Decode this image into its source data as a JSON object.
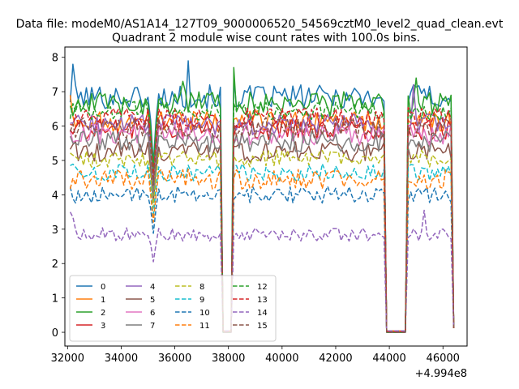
{
  "chart_data": {
    "type": "line",
    "suptitle": "Data file: modeM0/AS1A14_127T09_9000006520_54569cztM0_level2_quad_clean.evt",
    "title": "Quadrant 2 module wise count rates with 100.0s bins.",
    "xlabel": "",
    "ylabel": "",
    "x_offset_label": "+4.994e8",
    "xlim": [
      31900,
      46900
    ],
    "ylim": [
      -0.4,
      8.3
    ],
    "xticks": [
      32000,
      34000,
      36000,
      38000,
      40000,
      42000,
      44000,
      46000
    ],
    "xtick_labels": [
      "32000",
      "34000",
      "36000",
      "38000",
      "40000",
      "42000",
      "44000",
      "46000"
    ],
    "yticks": [
      0,
      1,
      2,
      3,
      4,
      5,
      6,
      7,
      8
    ],
    "ytick_labels": [
      "0",
      "1",
      "2",
      "3",
      "4",
      "5",
      "6",
      "7",
      "8"
    ],
    "legend_position": "lower-left",
    "legend_columns": 4,
    "time_bins": {
      "x_start": 32100,
      "x_end": 46400,
      "step": 100
    },
    "gaps": [
      {
        "fall": [
          37700,
          37800
        ],
        "zero": [
          37800,
          38100
        ],
        "rise": [
          38100,
          38300
        ]
      },
      {
        "fall": [
          43800,
          43900
        ],
        "zero": [
          43900,
          44600
        ],
        "rise": [
          44600,
          44700
        ]
      }
    ],
    "final_drop": [
      46300,
      46400
    ],
    "series": [
      {
        "name": "0",
        "color": "#1f77b4",
        "dash": "solid",
        "level": 6.85,
        "amp": 0.35,
        "spikes": [
          [
            32200,
            7.8
          ],
          [
            36500,
            7.9
          ],
          [
            38200,
            7.4
          ],
          [
            42700,
            7.1
          ],
          [
            44900,
            7.2
          ]
        ]
      },
      {
        "name": "1",
        "color": "#ff7f0e",
        "dash": "solid",
        "level": 6.15,
        "amp": 0.3,
        "spikes": [
          [
            32100,
            6.9
          ]
        ]
      },
      {
        "name": "2",
        "color": "#2ca02c",
        "dash": "solid",
        "level": 6.65,
        "amp": 0.35,
        "spikes": [
          [
            38200,
            7.7
          ],
          [
            36300,
            7.3
          ],
          [
            45000,
            7.4
          ]
        ]
      },
      {
        "name": "3",
        "color": "#d62728",
        "dash": "solid",
        "level": 5.9,
        "amp": 0.3,
        "spikes": []
      },
      {
        "name": "4",
        "color": "#9467bd",
        "dash": "solid",
        "level": 6.05,
        "amp": 0.3,
        "spikes": [
          [
            44900,
            7.2
          ]
        ]
      },
      {
        "name": "5",
        "color": "#8c564b",
        "dash": "solid",
        "level": 5.25,
        "amp": 0.3,
        "spikes": []
      },
      {
        "name": "6",
        "color": "#e377c2",
        "dash": "solid",
        "level": 5.75,
        "amp": 0.3,
        "spikes": []
      },
      {
        "name": "7",
        "color": "#7f7f7f",
        "dash": "solid",
        "level": 5.55,
        "amp": 0.3,
        "spikes": []
      },
      {
        "name": "8",
        "color": "#bcbd22",
        "dash": "dashed",
        "level": 5.05,
        "amp": 0.25,
        "spikes": []
      },
      {
        "name": "9",
        "color": "#17becf",
        "dash": "dashed",
        "level": 4.65,
        "amp": 0.25,
        "spikes": []
      },
      {
        "name": "10",
        "color": "#1f77b4",
        "dash": "dashed",
        "level": 4.0,
        "amp": 0.25,
        "spikes": []
      },
      {
        "name": "11",
        "color": "#ff7f0e",
        "dash": "dashed",
        "level": 4.45,
        "amp": 0.3,
        "spikes": []
      },
      {
        "name": "12",
        "color": "#2ca02c",
        "dash": "dashed",
        "level": 6.45,
        "amp": 0.3,
        "spikes": []
      },
      {
        "name": "13",
        "color": "#d62728",
        "dash": "dashed",
        "level": 6.25,
        "amp": 0.3,
        "spikes": []
      },
      {
        "name": "14",
        "color": "#9467bd",
        "dash": "dashed",
        "level": 2.85,
        "amp": 0.2,
        "spikes": [
          [
            32100,
            3.5
          ],
          [
            32200,
            3.35
          ],
          [
            45300,
            3.55
          ]
        ]
      },
      {
        "name": "15",
        "color": "#8c564b",
        "dash": "dashed",
        "level": 5.95,
        "amp": 0.3,
        "spikes": []
      }
    ]
  }
}
